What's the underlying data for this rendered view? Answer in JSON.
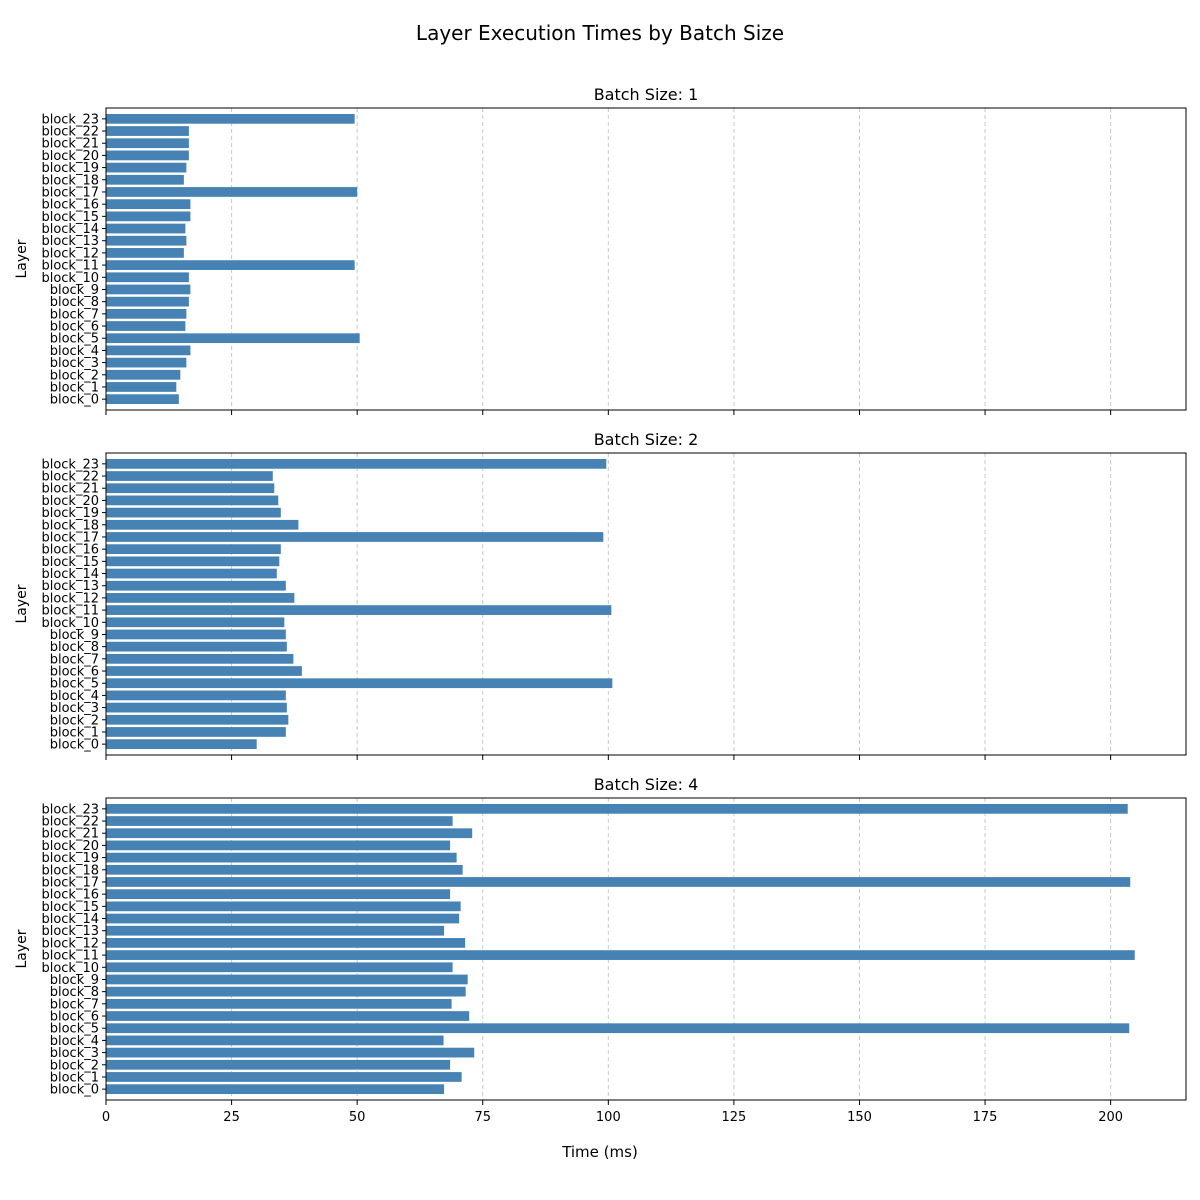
{
  "figure": {
    "title": "Layer Execution Times by Batch Size",
    "xlabel": "Time (ms)"
  },
  "colors": {
    "bar": "#4682b4",
    "grid": "#c8c8c8",
    "axis": "#000000"
  },
  "chart_data": [
    {
      "type": "bar",
      "orientation": "horizontal",
      "title": "Batch Size: 1",
      "xlabel": "",
      "ylabel": "Layer",
      "xlim": [
        0,
        215
      ],
      "xticks": [
        0,
        25,
        50,
        75,
        100,
        125,
        150,
        175,
        200
      ],
      "show_xtick_labels": false,
      "grid": "x-dashed",
      "categories": [
        "block_0",
        "block_1",
        "block_2",
        "block_3",
        "block_4",
        "block_5",
        "block_6",
        "block_7",
        "block_8",
        "block_9",
        "block_10",
        "block_11",
        "block_12",
        "block_13",
        "block_14",
        "block_15",
        "block_16",
        "block_17",
        "block_18",
        "block_19",
        "block_20",
        "block_21",
        "block_22",
        "block_23"
      ],
      "values": [
        14.5,
        14.0,
        14.8,
        16.0,
        16.8,
        50.5,
        15.8,
        16.0,
        16.5,
        16.8,
        16.5,
        49.5,
        15.5,
        16.0,
        15.8,
        16.8,
        16.8,
        50.0,
        15.5,
        16.0,
        16.5,
        16.5,
        16.5,
        49.5
      ]
    },
    {
      "type": "bar",
      "orientation": "horizontal",
      "title": "Batch Size: 2",
      "xlabel": "",
      "ylabel": "Layer",
      "xlim": [
        0,
        215
      ],
      "xticks": [
        0,
        25,
        50,
        75,
        100,
        125,
        150,
        175,
        200
      ],
      "show_xtick_labels": false,
      "grid": "x-dashed",
      "categories": [
        "block_0",
        "block_1",
        "block_2",
        "block_3",
        "block_4",
        "block_5",
        "block_6",
        "block_7",
        "block_8",
        "block_9",
        "block_10",
        "block_11",
        "block_12",
        "block_13",
        "block_14",
        "block_15",
        "block_16",
        "block_17",
        "block_18",
        "block_19",
        "block_20",
        "block_21",
        "block_22",
        "block_23"
      ],
      "values": [
        30.0,
        35.8,
        36.3,
        36.0,
        35.8,
        100.8,
        39.0,
        37.3,
        36.0,
        35.8,
        35.5,
        100.6,
        37.5,
        35.8,
        34.0,
        34.5,
        34.8,
        99.0,
        38.3,
        34.8,
        34.3,
        33.5,
        33.2,
        99.6
      ]
    },
    {
      "type": "bar",
      "orientation": "horizontal",
      "title": "Batch Size: 4",
      "xlabel": "Time (ms)",
      "ylabel": "Layer",
      "xlim": [
        0,
        215
      ],
      "xticks": [
        0,
        25,
        50,
        75,
        100,
        125,
        150,
        175,
        200
      ],
      "show_xtick_labels": true,
      "grid": "x-dashed",
      "categories": [
        "block_0",
        "block_1",
        "block_2",
        "block_3",
        "block_4",
        "block_5",
        "block_6",
        "block_7",
        "block_8",
        "block_9",
        "block_10",
        "block_11",
        "block_12",
        "block_13",
        "block_14",
        "block_15",
        "block_16",
        "block_17",
        "block_18",
        "block_19",
        "block_20",
        "block_21",
        "block_22",
        "block_23"
      ],
      "values": [
        67.3,
        70.8,
        68.5,
        73.3,
        67.2,
        203.7,
        72.3,
        68.8,
        71.6,
        72.0,
        69.0,
        204.8,
        71.5,
        67.3,
        70.3,
        70.6,
        68.5,
        203.9,
        71.0,
        69.8,
        68.5,
        72.9,
        69.0,
        203.4
      ]
    }
  ]
}
